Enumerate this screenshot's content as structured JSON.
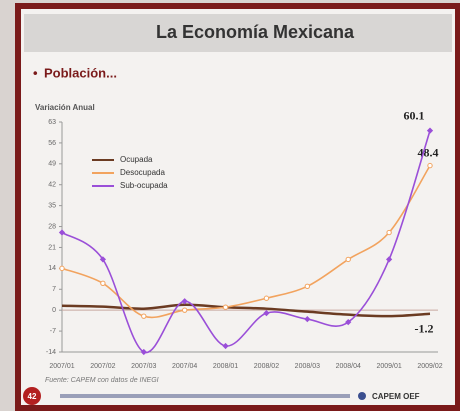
{
  "chart_data": {
    "type": "line",
    "title": "La Economía Mexicana",
    "subtitle": "Población...",
    "y_label": "Variación Anual",
    "source": "Fuente: CAPEM con datos de INEGI",
    "page_number": "42",
    "logo": "CAPEM OEF",
    "categories": [
      "2007/01",
      "2007/02",
      "2007/03",
      "2007/04",
      "2008/01",
      "2008/02",
      "2008/03",
      "2008/04",
      "2009/01",
      "2009/02"
    ],
    "series": [
      {
        "name": "Ocupada",
        "color": "#6b3b22",
        "values": [
          1.5,
          1.2,
          0.5,
          1.8,
          1.0,
          0.5,
          -0.5,
          -1.5,
          -2,
          -1.2
        ]
      },
      {
        "name": "Desocupada",
        "color": "#f2a35e",
        "values": [
          14,
          9,
          -2,
          0,
          1,
          4,
          8,
          17,
          26,
          48.4
        ]
      },
      {
        "name": "Sub-ocupada",
        "color": "#9a4fd8",
        "values": [
          26,
          17,
          -14,
          3,
          -12,
          -1,
          -3,
          -4,
          17,
          60.1
        ]
      }
    ],
    "ylim": [
      -14,
      63
    ],
    "yticks": [
      63,
      56,
      49,
      42,
      35,
      28,
      21,
      14,
      7,
      0,
      -7,
      -14
    ],
    "grid": false,
    "legend": "upper-left"
  }
}
